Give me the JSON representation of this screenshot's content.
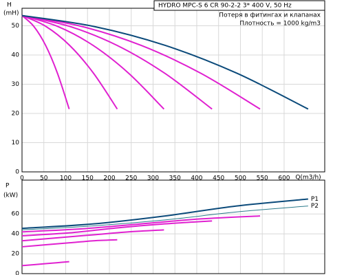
{
  "chart_data": [
    {
      "type": "line",
      "header": "HYDRO MPC-S 6 CR 90-2-2   3* 400 V, 50 Hz",
      "notes": [
        "Потеря в фитингах и клапанах",
        "Плотность = 1000 kg/m3"
      ],
      "y_label": [
        "H",
        "(mH)"
      ],
      "x_label": "Q(m3/h)",
      "xlim": [
        0,
        693
      ],
      "xticks": [
        0,
        50,
        100,
        150,
        200,
        250,
        300,
        350,
        400,
        450,
        500,
        550,
        600
      ],
      "ylim": [
        0,
        56
      ],
      "yticks": [
        0,
        10,
        20,
        30,
        40,
        50
      ],
      "grid": true,
      "series": [
        {
          "color": "#e020d0",
          "x": [
            0,
            27,
            54,
            81,
            108
          ],
          "values": [
            53.5,
            49.8,
            43.3,
            33.8,
            21.5
          ]
        },
        {
          "color": "#e020d0",
          "x": [
            0,
            54.5,
            109,
            163.5,
            218
          ],
          "values": [
            53.5,
            49.8,
            43.3,
            33.8,
            21.5
          ]
        },
        {
          "color": "#e020d0",
          "x": [
            0,
            81.25,
            162.5,
            243.75,
            325
          ],
          "values": [
            53.5,
            49.8,
            43.3,
            33.8,
            21.5
          ]
        },
        {
          "color": "#e020d0",
          "x": [
            0,
            108.75,
            217.5,
            326.25,
            435
          ],
          "values": [
            53.5,
            49.8,
            43.3,
            33.8,
            21.5
          ]
        },
        {
          "color": "#e020d0",
          "x": [
            0,
            136.25,
            272.5,
            408.75,
            545
          ],
          "values": [
            53.5,
            49.8,
            43.3,
            33.8,
            21.5
          ]
        },
        {
          "color": "#0b4a7a",
          "x": [
            0,
            163.75,
            327.5,
            491.25,
            655
          ],
          "values": [
            53.5,
            49.8,
            43.3,
            33.8,
            21.5
          ]
        }
      ]
    },
    {
      "type": "line",
      "y_label": [
        "P",
        "(kW)"
      ],
      "xlim": [
        0,
        693
      ],
      "ylim": [
        0,
        94
      ],
      "yticks": [
        0,
        20,
        40,
        60
      ],
      "grid": true,
      "series": [
        {
          "color": "#e020d0",
          "x": [
            0,
            27,
            54,
            81,
            108
          ],
          "values": [
            8,
            9,
            10,
            11,
            12
          ]
        },
        {
          "color": "#e020d0",
          "x": [
            0,
            54.5,
            109,
            163.5,
            218
          ],
          "values": [
            27,
            29,
            31,
            33,
            34
          ]
        },
        {
          "color": "#e020d0",
          "x": [
            0,
            81.25,
            162.5,
            243.75,
            325
          ],
          "values": [
            33,
            36,
            39,
            42,
            44
          ]
        },
        {
          "color": "#e020d0",
          "x": [
            0,
            108.75,
            217.5,
            326.25,
            435
          ],
          "values": [
            38,
            41,
            46,
            50,
            53
          ]
        },
        {
          "color": "#e020d0",
          "x": [
            0,
            136.25,
            272.5,
            408.75,
            545
          ],
          "values": [
            42,
            45,
            50,
            55,
            58
          ]
        },
        {
          "name": "P1",
          "color": "#0b4a7a",
          "x": [
            0,
            163.75,
            327.5,
            491.25,
            655
          ],
          "values": [
            45.5,
            50,
            58,
            68,
            75
          ]
        },
        {
          "name": "P2",
          "color": "#2a7a8a",
          "x": [
            0,
            163.75,
            327.5,
            491.25,
            655
          ],
          "values": [
            44,
            48,
            54,
            62,
            68
          ]
        }
      ]
    }
  ]
}
